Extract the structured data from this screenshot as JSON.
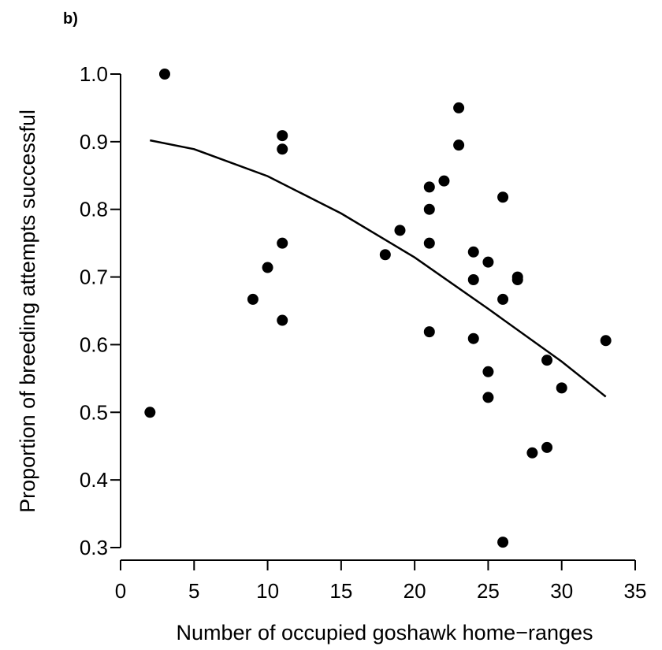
{
  "panel_label": "b)",
  "chart_data": {
    "type": "scatter",
    "title": "",
    "xlabel": "Number of occupied goshawk home−ranges",
    "ylabel": "Proportion of breeding attempts successful",
    "xlim": [
      0,
      35
    ],
    "ylim": [
      0.3,
      1.0
    ],
    "x_ticks": [
      0,
      5,
      10,
      15,
      20,
      25,
      30,
      35
    ],
    "x_tick_labels": [
      "0",
      "5",
      "10",
      "15",
      "20",
      "25",
      "30",
      "35"
    ],
    "y_ticks": [
      0.3,
      0.4,
      0.5,
      0.6,
      0.7,
      0.8,
      0.9,
      1.0
    ],
    "y_tick_labels": [
      "0.3",
      "0.4",
      "0.5",
      "0.6",
      "0.7",
      "0.8",
      "0.9",
      "1.0"
    ],
    "grid": false,
    "legend": "none",
    "marker_color": "#000000",
    "points": [
      {
        "x": 2,
        "y": 0.5
      },
      {
        "x": 3,
        "y": 1.0
      },
      {
        "x": 9,
        "y": 0.667
      },
      {
        "x": 10,
        "y": 0.714
      },
      {
        "x": 11,
        "y": 0.909
      },
      {
        "x": 11,
        "y": 0.889
      },
      {
        "x": 11,
        "y": 0.75
      },
      {
        "x": 11,
        "y": 0.636
      },
      {
        "x": 18,
        "y": 0.733
      },
      {
        "x": 19,
        "y": 0.769
      },
      {
        "x": 21,
        "y": 0.833
      },
      {
        "x": 21,
        "y": 0.8
      },
      {
        "x": 21,
        "y": 0.75
      },
      {
        "x": 21,
        "y": 0.619
      },
      {
        "x": 22,
        "y": 0.842
      },
      {
        "x": 23,
        "y": 0.95
      },
      {
        "x": 23,
        "y": 0.895
      },
      {
        "x": 24,
        "y": 0.737
      },
      {
        "x": 24,
        "y": 0.696
      },
      {
        "x": 24,
        "y": 0.609
      },
      {
        "x": 25,
        "y": 0.722
      },
      {
        "x": 25,
        "y": 0.56
      },
      {
        "x": 25,
        "y": 0.522
      },
      {
        "x": 26,
        "y": 0.818
      },
      {
        "x": 26,
        "y": 0.667
      },
      {
        "x": 26,
        "y": 0.308
      },
      {
        "x": 27,
        "y": 0.7
      },
      {
        "x": 27,
        "y": 0.696
      },
      {
        "x": 28,
        "y": 0.44
      },
      {
        "x": 29,
        "y": 0.577
      },
      {
        "x": 29,
        "y": 0.448
      },
      {
        "x": 30,
        "y": 0.536
      },
      {
        "x": 33,
        "y": 0.606
      }
    ],
    "fitted_curve": {
      "type": "quadratic",
      "x_range": [
        2,
        33
      ],
      "points": [
        {
          "x": 2,
          "y": 0.902
        },
        {
          "x": 5,
          "y": 0.889
        },
        {
          "x": 10,
          "y": 0.849
        },
        {
          "x": 15,
          "y": 0.794
        },
        {
          "x": 20,
          "y": 0.729
        },
        {
          "x": 25,
          "y": 0.653
        },
        {
          "x": 30,
          "y": 0.575
        },
        {
          "x": 33,
          "y": 0.523
        }
      ]
    }
  }
}
